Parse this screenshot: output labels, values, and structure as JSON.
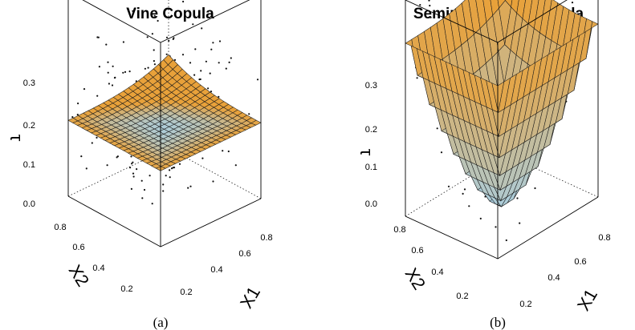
{
  "figure": {
    "captions": [
      "(a)",
      "(b)"
    ],
    "colors": {
      "surface_high": "#e8a13a",
      "surface_low": "#a9cfe3",
      "points": "#111111",
      "grid": "#1a1a1a"
    }
  },
  "chart_data": [
    {
      "type": "surface3d",
      "title": "Vine Copula",
      "xlabel": "X1",
      "ylabel": "X2",
      "zlabel": "τ",
      "x_ticks": [
        "0.2",
        "0.4",
        "0.6",
        "0.8"
      ],
      "y_ticks": [
        "0.2",
        "0.4",
        "0.6",
        "0.8"
      ],
      "z_ticks": [
        "0.0",
        "0.1",
        "0.2",
        "0.3"
      ],
      "xlim": [
        0.05,
        0.95
      ],
      "ylim": [
        0.05,
        0.95
      ],
      "zlim": [
        0,
        0.35
      ],
      "surface": "bowl",
      "surface_range": {
        "center": 0.125,
        "edge": 0.13,
        "corner_max": 0.16
      },
      "scatter": "observed points around the surface",
      "grid_cells": 20
    },
    {
      "type": "surface3d",
      "title": "Semiparametric Copula",
      "xlabel": "X1",
      "ylabel": "X2",
      "zlabel": "τ",
      "x_ticks": [
        "0.2",
        "0.4",
        "0.6",
        "0.8"
      ],
      "y_ticks": [
        "0.2",
        "0.4",
        "0.6",
        "0.8"
      ],
      "z_ticks": [
        "0.0",
        "0.1",
        "0.2",
        "0.3"
      ],
      "xlim": [
        0.05,
        0.95
      ],
      "ylim": [
        0.05,
        0.95
      ],
      "zlim": [
        0,
        0.35
      ],
      "surface": "bowl",
      "surface_range": {
        "center": 0.0,
        "edge": 0.28,
        "corner_max": 0.33
      },
      "scatter": "observed points around the surface",
      "grid_cells": 16
    }
  ]
}
